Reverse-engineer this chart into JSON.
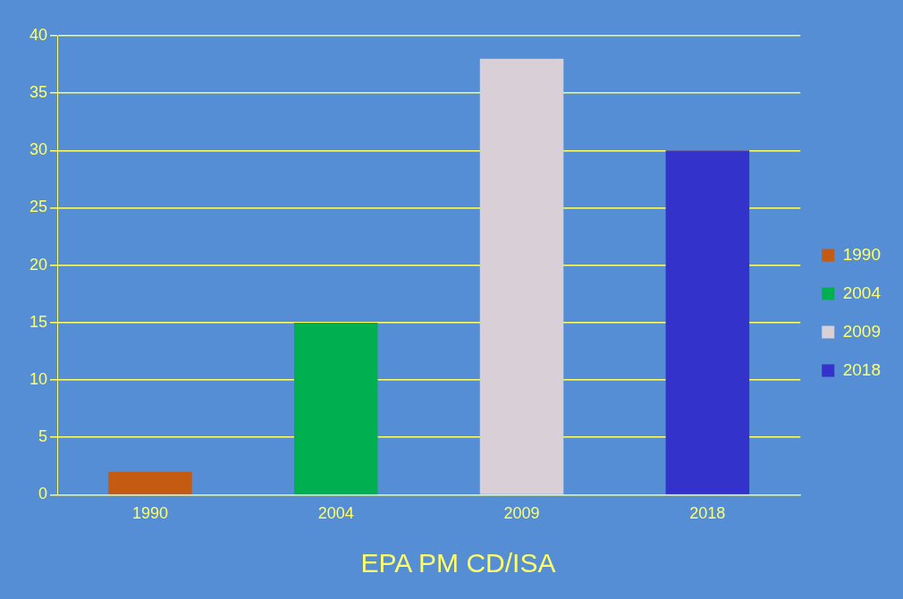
{
  "chart_data": {
    "type": "bar",
    "title": "EPA PM CD/ISA",
    "categories": [
      "1990",
      "2004",
      "2009",
      "2018"
    ],
    "series": [
      {
        "name": "1990",
        "color": "#c55a11",
        "values": [
          2,
          null,
          null,
          null
        ]
      },
      {
        "name": "2004",
        "color": "#00b050",
        "values": [
          null,
          15,
          null,
          null
        ]
      },
      {
        "name": "2009",
        "color": "#d9cfd6",
        "values": [
          null,
          null,
          38,
          null
        ]
      },
      {
        "name": "2018",
        "color": "#3333cc",
        "values": [
          null,
          null,
          null,
          30
        ]
      }
    ],
    "ylim": [
      0,
      40
    ],
    "yticks": [
      0,
      5,
      10,
      15,
      20,
      25,
      30,
      35,
      40
    ],
    "grid": "y",
    "legend": "right"
  }
}
